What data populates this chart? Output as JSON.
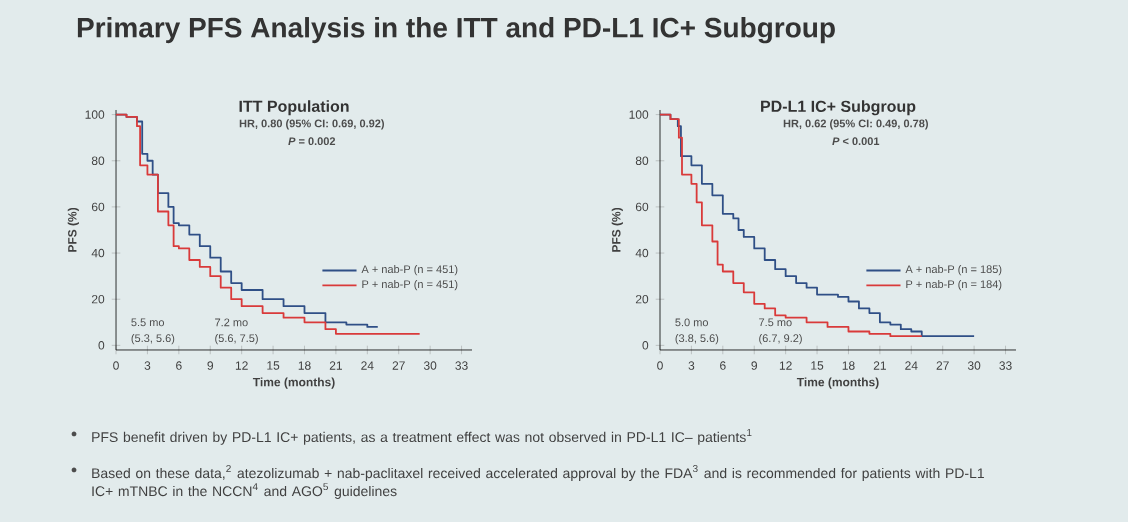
{
  "chart_data": [
    {
      "type": "step",
      "title": "Primary PFS Analysis in the ITT and PD-L1 IC+ Subgroup",
      "subtitle": "ITT Population",
      "xlabel": "Time (months)",
      "ylabel": "PFS (%)",
      "xlim": [
        0,
        34
      ],
      "ylim": [
        -2,
        102
      ],
      "xticks": [
        0,
        3,
        6,
        9,
        12,
        15,
        18,
        21,
        24,
        27,
        30,
        33
      ],
      "yticks": [
        0,
        20,
        40,
        60,
        80,
        100
      ],
      "legend": "right",
      "annotations": [
        "HR, 0.80 (95% CI: 0.69, 0.92)",
        "*P* = 0.002",
        "5.5 mo",
        "(5.3, 5.6)",
        "7.2 mo",
        "(5.6, 7.5)"
      ],
      "series": [
        {
          "name": "A + nab-P (n = 451)",
          "color": "#2f4f86",
          "x": [
            0,
            1,
            2,
            2.5,
            3,
            3.5,
            4,
            5,
            5.5,
            6,
            7,
            8,
            9,
            10,
            11,
            12,
            14,
            16,
            18,
            20,
            22,
            24,
            25
          ],
          "values": [
            100,
            99,
            97,
            83,
            80,
            74,
            66,
            60,
            53,
            52,
            48,
            43,
            38,
            32,
            27,
            24,
            20,
            17,
            14,
            10,
            9,
            8,
            8
          ]
        },
        {
          "name": "P + nab-P (n = 451)",
          "color": "#d93a3a",
          "x": [
            0,
            1,
            2,
            2.3,
            3,
            4,
            5,
            5.5,
            6,
            7,
            8,
            9,
            10,
            11,
            12,
            14,
            16,
            18,
            20,
            21,
            22,
            25,
            29
          ],
          "values": [
            100,
            99,
            95,
            78,
            74,
            58,
            52,
            43,
            42,
            37,
            34,
            30,
            25,
            20,
            17,
            14,
            12,
            10,
            7,
            5,
            5,
            5,
            5
          ]
        }
      ]
    },
    {
      "type": "step",
      "subtitle": "PD-L1 IC+ Subgroup",
      "xlabel": "Time (months)",
      "ylabel": "PFS (%)",
      "xlim": [
        0,
        34
      ],
      "ylim": [
        -2,
        102
      ],
      "xticks": [
        0,
        3,
        6,
        9,
        12,
        15,
        18,
        21,
        24,
        27,
        30,
        33
      ],
      "yticks": [
        0,
        20,
        40,
        60,
        80,
        100
      ],
      "legend": "right",
      "annotations": [
        "HR, 0.62 (95% CI: 0.49, 0.78)",
        "*P* < 0.001",
        "5.0 mo",
        "(3.8, 5.6)",
        "7.5 mo",
        "(6.7, 9.2)",
        "PFS benefit driven by PD-L1 IC+ patients, as a treatment effect was not observed in PD-L1 IC– patients$^{1}$",
        "Based on these data,$^{2}$ atezolizumab + nab-paclitaxel received accelerated approval by the FDA$^{3}$ and is recommended for patients with PD-L1 IC+ mTNBC in the NCCN$^{4}$ and AGO$^{5}$ guidelines"
      ],
      "series": [
        {
          "name": "A + nab-P (n = 185)",
          "color": "#2f4f86",
          "x": [
            0,
            1,
            1.7,
            2,
            3,
            4,
            5,
            6,
            7,
            7.5,
            8,
            9,
            10,
            11,
            12,
            13,
            14,
            15,
            17,
            18,
            19,
            20,
            21,
            22,
            23,
            24,
            25,
            30
          ],
          "values": [
            100,
            98,
            95,
            82,
            78,
            70,
            65,
            57,
            55,
            50,
            47,
            42,
            37,
            33,
            30,
            27,
            25,
            22,
            21,
            19,
            16,
            14,
            10,
            9,
            7,
            6,
            4,
            4
          ]
        },
        {
          "name": "P + nab-P (n = 184)",
          "color": "#d93a3a",
          "x": [
            0,
            1,
            1.8,
            2.1,
            3,
            3.5,
            4,
            5,
            5.5,
            6,
            7,
            8,
            9,
            10,
            11,
            12,
            14,
            16,
            18,
            20,
            22,
            24,
            25
          ],
          "values": [
            100,
            98,
            90,
            74,
            70,
            62,
            52,
            45,
            35,
            32,
            27,
            23,
            18,
            16,
            13,
            12,
            10,
            8,
            6,
            5,
            4,
            4,
            4
          ]
        }
      ]
    }
  ]
}
